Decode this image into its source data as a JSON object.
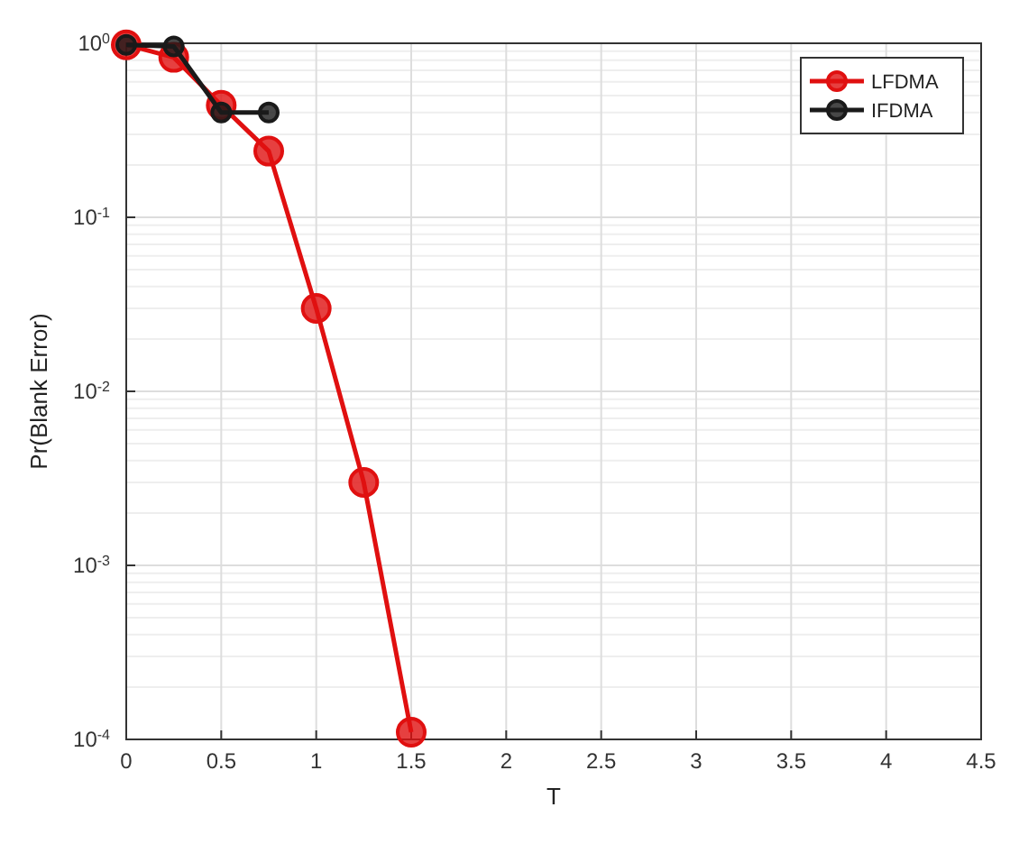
{
  "chart_data": {
    "type": "line",
    "xlabel": "T",
    "ylabel": "Pr(Blank Error)",
    "log": "y",
    "xlim": [
      0,
      4.5
    ],
    "xticks": [
      0,
      0.5,
      1,
      1.5,
      2,
      2.5,
      3,
      3.5,
      4,
      4.5
    ],
    "ylim": [
      0.0001,
      1
    ],
    "yticks": [
      {
        "value": 0.0001,
        "label": "10$^{-4}$"
      },
      {
        "value": 0.001,
        "label": "10$^{-3}$"
      },
      {
        "value": 0.01,
        "label": "10$^{-2}$"
      },
      {
        "value": 0.1,
        "label": "10$^{-1}$"
      },
      {
        "value": 1,
        "label": "10$^{0}$"
      }
    ],
    "grid": true,
    "legend": "top right",
    "marker": "circle",
    "line_style": "solid",
    "series": [
      {
        "name": "LFDMA",
        "color": "#e01010",
        "x": [
          0,
          0.25,
          0.5,
          0.75,
          1,
          1.25,
          1.5
        ],
        "values": [
          0.98,
          0.83,
          0.44,
          0.24,
          0.03,
          0.003,
          0.00011
        ]
      },
      {
        "name": "IFDMA",
        "color": "#1a1a1a",
        "x": [
          0,
          0.25,
          0.5,
          0.75
        ],
        "values": [
          0.98,
          0.96,
          0.4,
          0.4
        ]
      }
    ]
  }
}
